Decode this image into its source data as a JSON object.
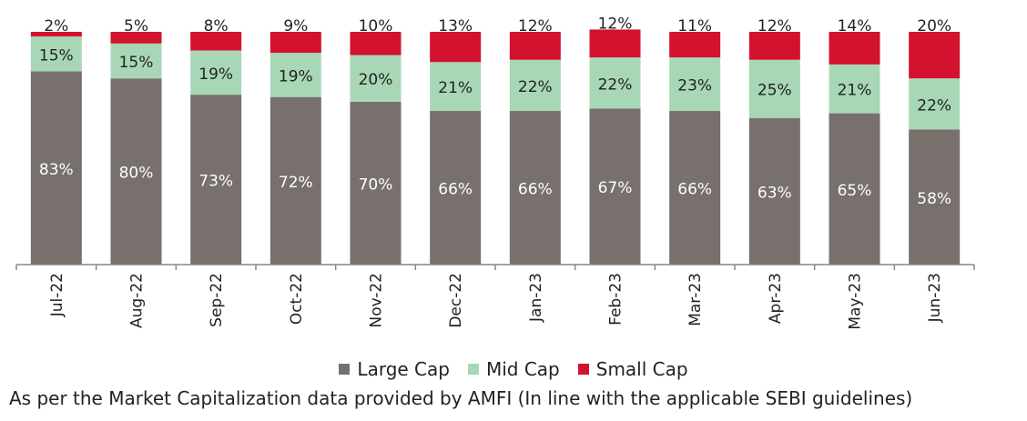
{
  "chart_data": {
    "type": "bar",
    "stacked": true,
    "categories": [
      "Jul-22",
      "Aug-22",
      "Sep-22",
      "Oct-22",
      "Nov-22",
      "Dec-22",
      "Jan-23",
      "Feb-23",
      "Mar-23",
      "Apr-23",
      "May-23",
      "Jun-23"
    ],
    "series": [
      {
        "name": "Large Cap",
        "color": "#77706c",
        "values": [
          83,
          80,
          73,
          72,
          70,
          66,
          66,
          67,
          66,
          63,
          65,
          58
        ]
      },
      {
        "name": "Mid Cap",
        "color": "#a8d7b6",
        "values": [
          15,
          15,
          19,
          19,
          20,
          21,
          22,
          22,
          23,
          25,
          21,
          22
        ]
      },
      {
        "name": "Small Cap",
        "color": "#d2122e",
        "values": [
          2,
          5,
          8,
          9,
          10,
          13,
          12,
          12,
          11,
          12,
          14,
          20
        ]
      }
    ],
    "value_suffix": "%",
    "ylim": [
      0,
      100
    ],
    "grid": false,
    "legend_position": "bottom"
  },
  "footnote": "As per the Market Capitalization data provided by AMFI (In line with the applicable SEBI guidelines)"
}
